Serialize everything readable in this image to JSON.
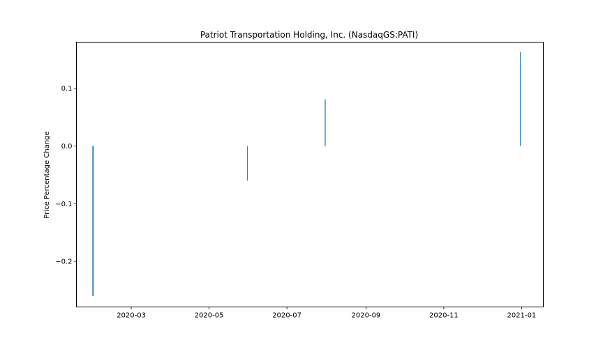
{
  "chart_data": {
    "type": "bar",
    "title": "Patriot Transportation Holding, Inc. (NasdaqGS:PATI)",
    "xlabel": "",
    "ylabel": "Price Percentage Change",
    "x_type": "date",
    "xlim": [
      "2020-01-18",
      "2021-01-18"
    ],
    "ylim": [
      -0.279,
      0.18
    ],
    "x_ticks": [
      "2020-03",
      "2020-05",
      "2020-07",
      "2020-09",
      "2020-11",
      "2021-01"
    ],
    "y_ticks": [
      -0.2,
      -0.1,
      0.0,
      0.1
    ],
    "y_tick_labels": [
      "−0.2",
      "−0.1",
      "0.0",
      "0.1"
    ],
    "grid": false,
    "series_color": "#1f77b4",
    "points": [
      {
        "x": "2020-01-31",
        "y": -0.26,
        "bar_width_days": 1.0
      },
      {
        "x": "2020-05-31",
        "y": -0.06,
        "bar_width_days": 0.3
      },
      {
        "x": "2020-07-31",
        "y": 0.081,
        "bar_width_days": 0.7
      },
      {
        "x": "2020-12-31",
        "y": 0.163,
        "bar_width_days": 0.3
      }
    ]
  }
}
